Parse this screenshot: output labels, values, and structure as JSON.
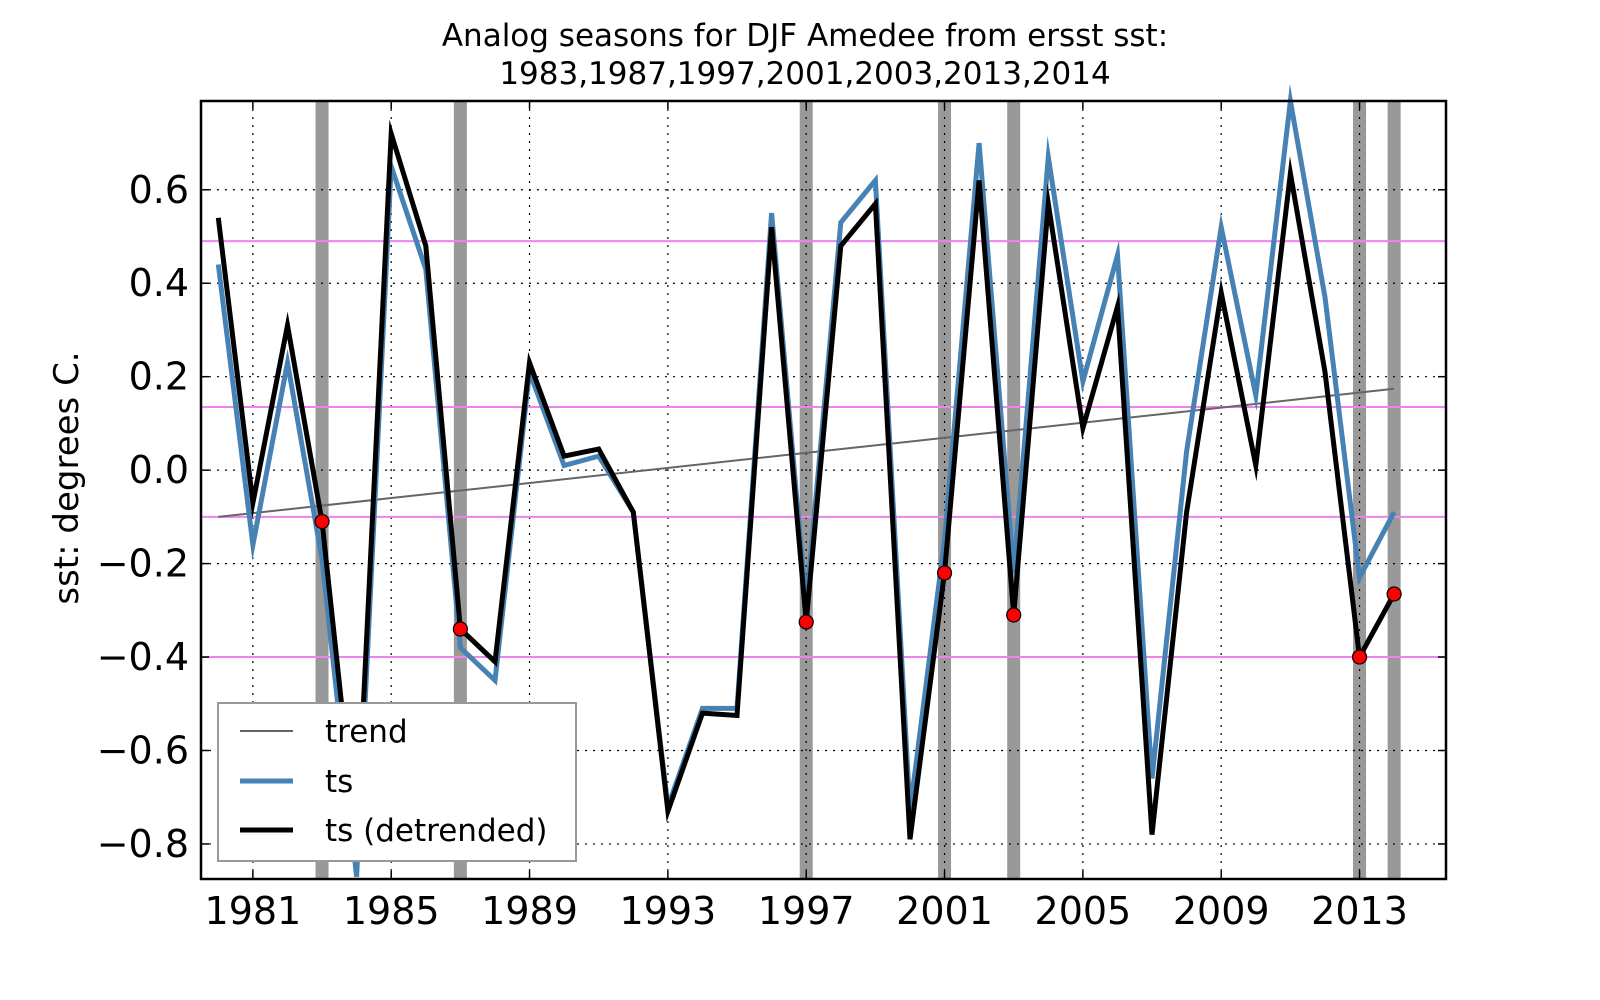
{
  "chart_data": {
    "type": "line",
    "title": "Analog seasons for DJF Amedee from ersst sst:",
    "subtitle": "1983,1987,1997,2001,2003,2013,2014",
    "xlabel": "",
    "ylabel": "sst: degrees C.",
    "xlim": [
      1979.5,
      2015.5
    ],
    "ylim": [
      -0.875,
      0.79
    ],
    "x_ticks": [
      1981,
      1985,
      1989,
      1993,
      1997,
      2001,
      2005,
      2009,
      2013
    ],
    "x_tick_labels": [
      "1981",
      "1985",
      "1989",
      "1993",
      "1997",
      "2001",
      "2005",
      "2009",
      "2013"
    ],
    "y_ticks": [
      0.6,
      0.4,
      0.2,
      0.0,
      -0.2,
      -0.4,
      -0.6,
      -0.8
    ],
    "y_tick_labels": [
      "0.6",
      "0.4",
      "0.2",
      "0.0",
      "−0.2",
      "−0.4",
      "−0.6",
      "−0.8"
    ],
    "grid": true,
    "legend_position": "lower-left",
    "x": [
      1980,
      1981,
      1982,
      1983,
      1984,
      1985,
      1986,
      1987,
      1988,
      1989,
      1990,
      1991,
      1992,
      1993,
      1994,
      1995,
      1996,
      1997,
      1998,
      1999,
      2000,
      2001,
      2002,
      2003,
      2004,
      2005,
      2006,
      2007,
      2008,
      2009,
      2010,
      2011,
      2012,
      2013,
      2014
    ],
    "series": [
      {
        "name": "trend",
        "color": "#666666",
        "values": [
          -0.1,
          -0.092,
          -0.084,
          -0.076,
          -0.068,
          -0.06,
          -0.052,
          -0.043,
          -0.035,
          -0.027,
          -0.019,
          -0.011,
          -0.003,
          0.005,
          0.013,
          0.021,
          0.029,
          0.037,
          0.045,
          0.053,
          0.061,
          0.07,
          0.078,
          0.086,
          0.094,
          0.102,
          0.11,
          0.118,
          0.126,
          0.134,
          0.142,
          0.15,
          0.158,
          0.166,
          0.174
        ]
      },
      {
        "name": "ts",
        "color": "#4682b4",
        "values": [
          0.44,
          -0.16,
          0.23,
          -0.19,
          -0.87,
          0.65,
          0.43,
          -0.38,
          -0.45,
          0.21,
          0.01,
          0.03,
          -0.09,
          -0.72,
          -0.51,
          -0.51,
          0.55,
          -0.29,
          0.53,
          0.62,
          -0.73,
          -0.15,
          0.7,
          -0.22,
          0.67,
          0.19,
          0.46,
          -0.66,
          0.04,
          0.52,
          0.16,
          0.79,
          0.37,
          -0.23,
          -0.09
        ]
      },
      {
        "name": "ts (detrended)",
        "color": "#000000",
        "values": [
          0.54,
          -0.07,
          0.31,
          -0.11,
          -0.8,
          0.72,
          0.48,
          -0.34,
          -0.41,
          0.23,
          0.03,
          0.045,
          -0.09,
          -0.73,
          -0.52,
          -0.525,
          0.52,
          -0.325,
          0.48,
          0.57,
          -0.79,
          -0.22,
          0.62,
          -0.31,
          0.57,
          0.09,
          0.35,
          -0.78,
          -0.09,
          0.38,
          0.01,
          0.635,
          0.21,
          -0.4,
          -0.265
        ]
      }
    ],
    "analog_years": [
      1983,
      1987,
      1997,
      2001,
      2003,
      2013,
      2014
    ],
    "analog_band_color": "#999999",
    "marker_color": "#ff0000",
    "horizontal_lines": [
      0.49,
      0.135,
      -0.1,
      -0.4
    ],
    "horizontal_line_color": "#ee82ee"
  }
}
